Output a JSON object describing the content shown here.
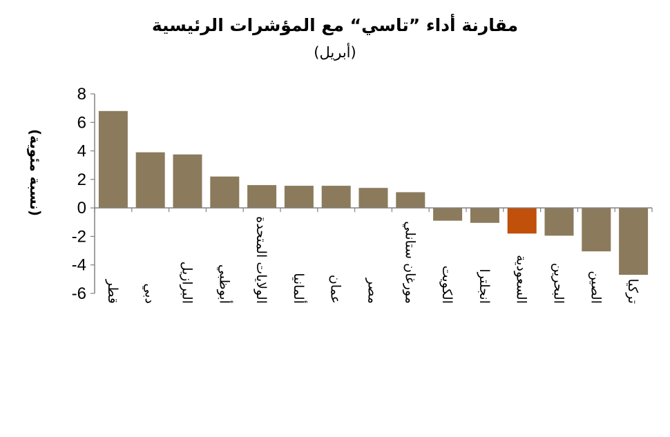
{
  "chart_data": {
    "type": "bar",
    "title": "مقارنة أداء ”تاسي“ مع المؤشرات الرئيسية",
    "subtitle": "(أبريل)",
    "ylabel": "(نسبة مئوية)",
    "xlabel": "",
    "ylim": [
      -6,
      8
    ],
    "yticks": [
      8,
      6,
      4,
      2,
      0,
      -2,
      -4,
      -6
    ],
    "grid": false,
    "categories": [
      "قطر",
      "دبي",
      "البرازيل",
      "أبوظبي",
      "الولايات المتحدة",
      "ألمانيا",
      "عمان",
      "مصر",
      "مورغان ستانلي",
      "الكويت",
      "انجلترا",
      "السعودية",
      "البحرين",
      "الصين",
      "تركيا"
    ],
    "values": [
      6.8,
      3.9,
      3.75,
      2.2,
      1.6,
      1.55,
      1.55,
      1.4,
      1.1,
      -0.9,
      -1.05,
      -1.8,
      -1.95,
      -3.05,
      -4.7
    ],
    "highlight_category": "السعودية",
    "colors": {
      "bar": "#8b7b5c",
      "highlight": "#c0500a",
      "axis": "#808080"
    }
  }
}
